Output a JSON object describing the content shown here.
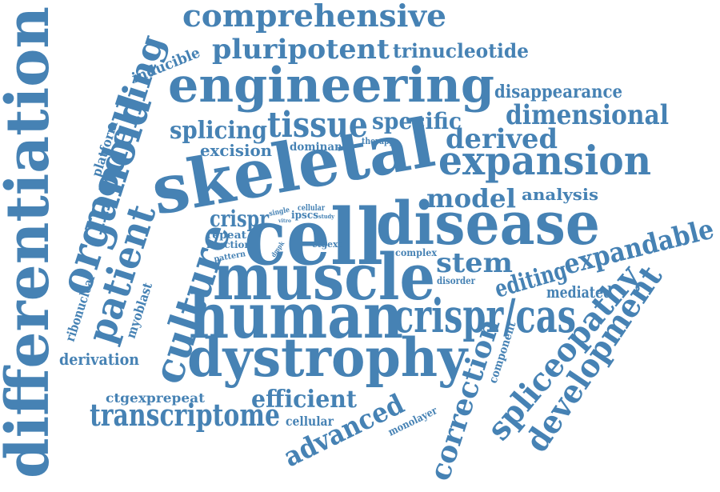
{
  "color": "#4682b4",
  "words": [
    "differentiation",
    "comprehensive",
    "pluripotent",
    "trinucleotide",
    "engineering",
    "modelling",
    "organoid",
    "inducible",
    "disappearance",
    "dimensional",
    "splicing",
    "tissue",
    "specific",
    "derived",
    "expansion",
    "platform",
    "excision",
    "dominant",
    "therapy",
    "skeletal",
    "model",
    "analysis",
    "crispr",
    "single",
    "ipscs",
    "cellular",
    "vitro",
    "study",
    "cell",
    "disease",
    "patient",
    "culture",
    "repeat",
    "function",
    "pattern",
    "dmpk",
    "ctgexp",
    "expandable",
    "complex",
    "stem",
    "editing",
    "ribonuclear",
    "myoblast",
    "muscle",
    "disorder",
    "mediated",
    "human",
    "crispr/cas",
    "spliceopathy",
    "derivation",
    "dystrophy",
    "component",
    "development",
    "ctgexprepeat",
    "efficient",
    "correction",
    "cellular",
    "advanced",
    "transcriptome",
    "monolayer"
  ]
}
